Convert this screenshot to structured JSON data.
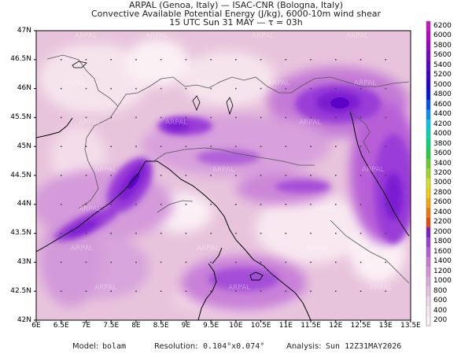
{
  "header": {
    "line1": "ARPAL (Genoa, Italy)  —  ISAC-CNR (Bologna, Italy)",
    "line2": "Convective Available Potential Energy (J/kg), 6000-10m wind shear",
    "line3": "15 UTC Sun 31 MAY  —  τ = 03h"
  },
  "watermark": "ARPAL",
  "axes": {
    "lat_labels": [
      "47N",
      "46.5N",
      "46N",
      "45.5N",
      "45N",
      "44.5N",
      "44N",
      "43.5N",
      "43N",
      "42.5N",
      "42N"
    ],
    "lon_labels": [
      "6E",
      "6.5E",
      "7E",
      "7.5E",
      "8E",
      "8.5E",
      "9E",
      "9.5E",
      "10E",
      "10.5E",
      "11E",
      "11.5E",
      "12E",
      "12.5E",
      "13E",
      "13.5E"
    ]
  },
  "colorbar": {
    "labels": [
      "6200",
      "6000",
      "5800",
      "5600",
      "5400",
      "5200",
      "5000",
      "4800",
      "4600",
      "4400",
      "4200",
      "4000",
      "3800",
      "3600",
      "3400",
      "3200",
      "3000",
      "2800",
      "2600",
      "2400",
      "2200",
      "2000",
      "1800",
      "1600",
      "1400",
      "1200",
      "1000",
      "800",
      "600",
      "400",
      "200"
    ],
    "colors": [
      "#cc10c8",
      "#b800c8",
      "#9800c8",
      "#7a00c8",
      "#5a00c8",
      "#3c00c8",
      "#2000d0",
      "#0018e0",
      "#0050f0",
      "#0090f8",
      "#00c8e8",
      "#00d8b0",
      "#00d878",
      "#20d040",
      "#60d020",
      "#a0d820",
      "#d8e020",
      "#f0d000",
      "#f4a800",
      "#f07800",
      "#e84800",
      "#7c1cd0",
      "#9a3cd8",
      "#b45ad8",
      "#c878d8",
      "#d890d8",
      "#e0a8dc",
      "#e8c0e0",
      "#f0d8e8",
      "#f8e8f0",
      "#fcf4f8"
    ]
  },
  "footer": {
    "model_label": "Model:",
    "model_value": "bolam",
    "resolution_label": "Resolution:",
    "resolution_value": "0.104°x0.074°",
    "analysis_label": "Analysis:",
    "analysis_value": "Sun 12Z31MAY2026"
  }
}
